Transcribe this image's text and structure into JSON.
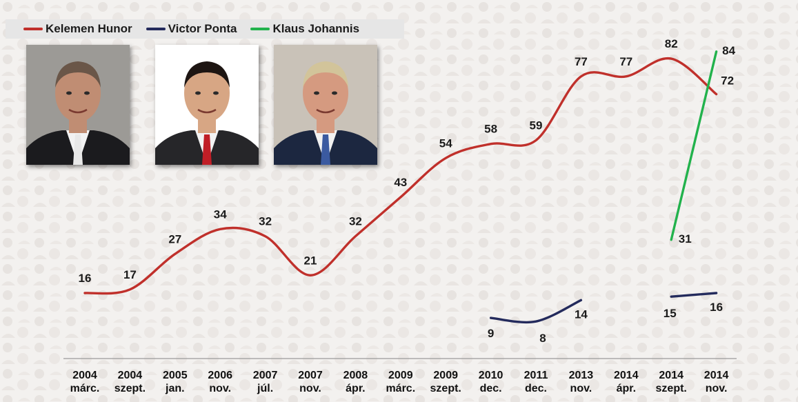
{
  "legend": [
    {
      "name": "Kelemen Hunor",
      "color": "#c0302b"
    },
    {
      "name": "Victor Ponta",
      "color": "#232a5c"
    },
    {
      "name": "Klaus Johannis",
      "color": "#22b24c"
    }
  ],
  "photos": [
    {
      "name": "kelemen-hunor-photo",
      "bg": "#9c9a96",
      "skin": "#c08d73",
      "suit": "#1b1b1e",
      "tie": "#e8e8e8",
      "hair": "#6a5648"
    },
    {
      "name": "victor-ponta-photo",
      "bg": "#ffffff",
      "skin": "#d7a684",
      "suit": "#262629",
      "tie": "#c01e26",
      "hair": "#1d1512"
    },
    {
      "name": "klaus-johannis-photo",
      "bg": "#c9c2b8",
      "skin": "#d59a80",
      "suit": "#1c2740",
      "tie": "#3b5aa0",
      "hair": "#d2c49a"
    }
  ],
  "chart_data": {
    "type": "line",
    "categories": [
      [
        "2004",
        "márc."
      ],
      [
        "2004",
        "szept."
      ],
      [
        "2005",
        "jan."
      ],
      [
        "2006",
        "nov."
      ],
      [
        "2007",
        "júl."
      ],
      [
        "2007",
        "nov."
      ],
      [
        "2008",
        "ápr."
      ],
      [
        "2009",
        "márc."
      ],
      [
        "2009",
        "szept."
      ],
      [
        "2010",
        "dec."
      ],
      [
        "2011",
        "dec."
      ],
      [
        "2013",
        "nov."
      ],
      [
        "2014",
        "ápr."
      ],
      [
        "2014",
        "szept."
      ],
      [
        "2014",
        "nov."
      ]
    ],
    "series": [
      {
        "name": "Kelemen Hunor",
        "color": "#c0302b",
        "values": [
          16,
          17,
          27,
          34,
          32,
          21,
          32,
          43,
          54,
          58,
          59,
          77,
          77,
          82,
          72
        ]
      },
      {
        "name": "Victor Ponta",
        "color": "#232a5c",
        "values": [
          null,
          null,
          null,
          null,
          null,
          null,
          null,
          null,
          null,
          9,
          8,
          14,
          null,
          15,
          16
        ]
      },
      {
        "name": "Klaus Johannis",
        "color": "#22b24c",
        "values": [
          null,
          null,
          null,
          null,
          null,
          null,
          null,
          null,
          null,
          null,
          null,
          null,
          null,
          31,
          84
        ]
      }
    ],
    "grid": false,
    "legend_position": "top-left"
  }
}
